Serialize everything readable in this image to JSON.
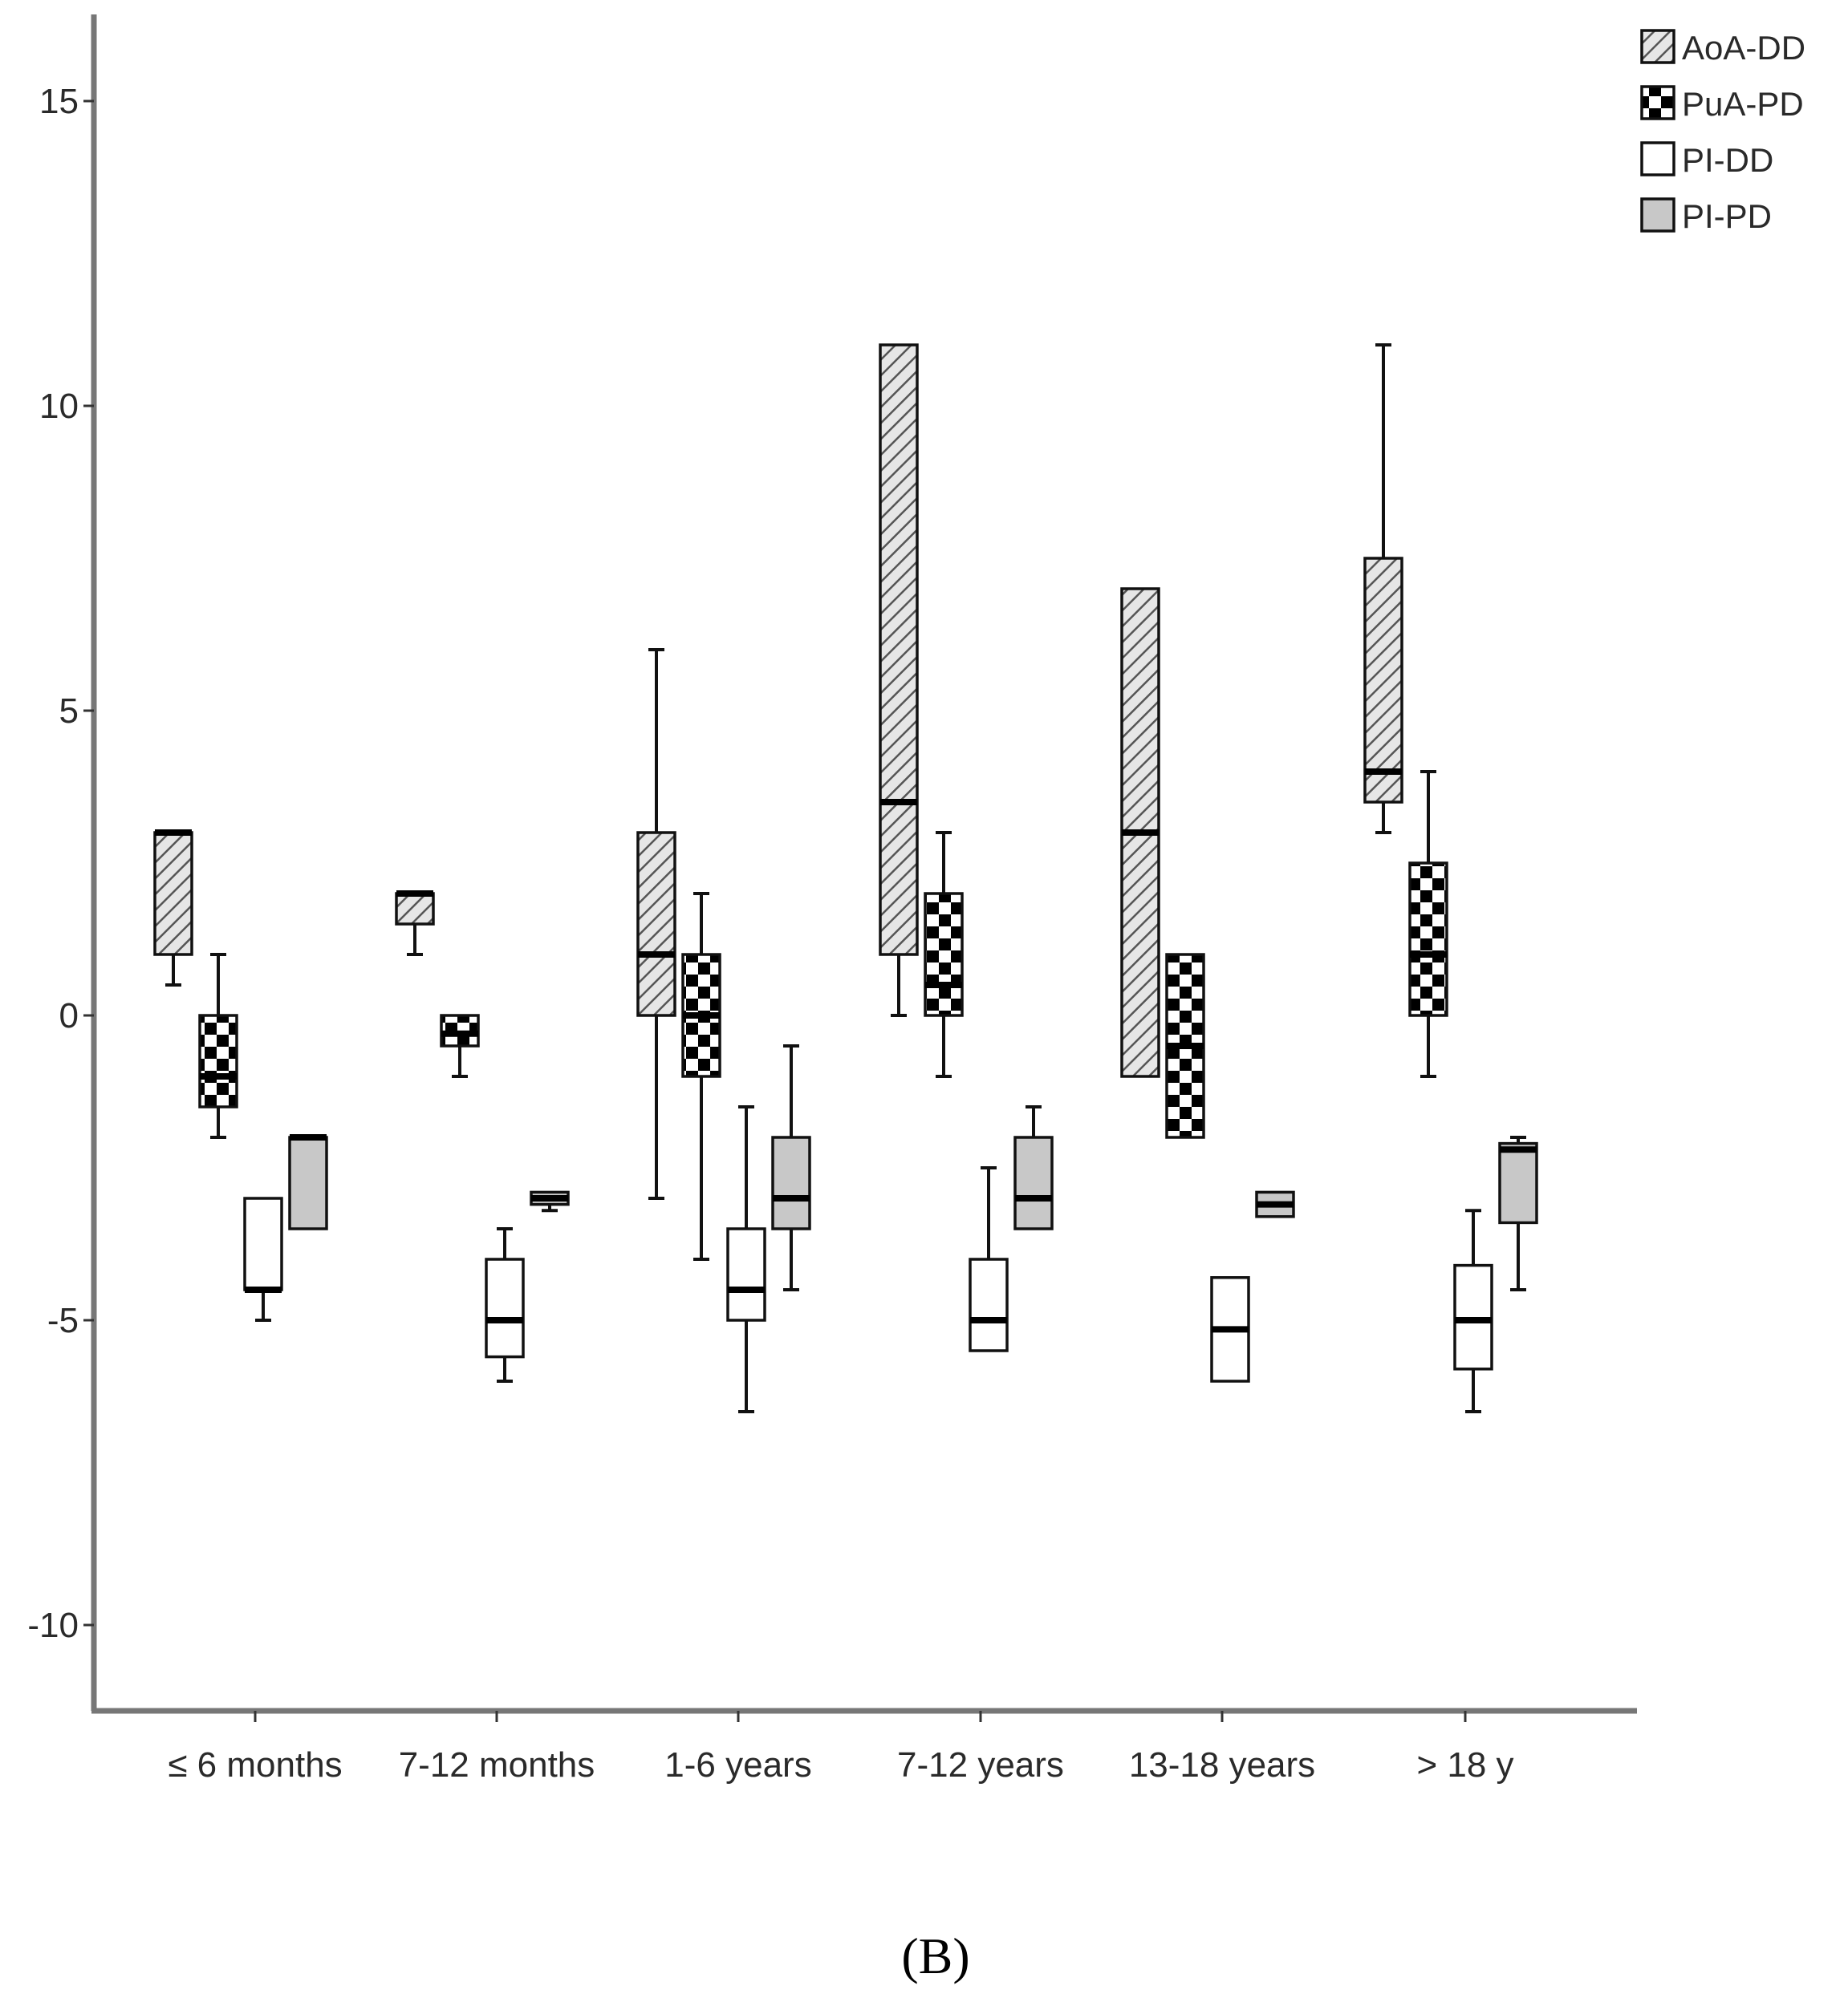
{
  "chart_data": {
    "type": "boxplot",
    "panel_label": "B",
    "ylim": [
      -11.5,
      16.5
    ],
    "y_ticks": [
      15,
      10,
      5,
      0,
      -5,
      -10
    ],
    "y_tick_labels": [
      "15",
      "10",
      "5",
      "0",
      "-5",
      "-10"
    ],
    "categories": [
      "≤ 6 months",
      "7-12 months",
      "1-6 years",
      "7-12 years",
      "13-18 years",
      "> 18 y"
    ],
    "legend_position": "top-right",
    "series": [
      {
        "name": "AoA-DD",
        "fill": "hatch",
        "boxes": [
          {
            "min": 0.5,
            "q1": 1.0,
            "median": 3.0,
            "q3": 3.0,
            "max": 3.0
          },
          {
            "min": 1.0,
            "q1": 1.5,
            "median": 2.0,
            "q3": 2.0,
            "max": 2.0
          },
          {
            "min": -3.0,
            "q1": 0.0,
            "median": 1.0,
            "q3": 3.0,
            "max": 6.0
          },
          {
            "min": 0.0,
            "q1": 1.0,
            "median": 3.5,
            "q3": 11.0,
            "max": 11.0
          },
          {
            "min": -1.0,
            "q1": -1.0,
            "median": 3.0,
            "q3": 7.0,
            "max": 7.0
          },
          {
            "min": 3.0,
            "q1": 3.5,
            "median": 4.0,
            "q3": 7.5,
            "max": 11.0
          }
        ]
      },
      {
        "name": "PuA-PD",
        "fill": "checker",
        "boxes": [
          {
            "min": -2.0,
            "q1": -1.5,
            "median": -1.0,
            "q3": 0.0,
            "max": 1.0
          },
          {
            "min": -1.0,
            "q1": -0.5,
            "median": -0.3,
            "q3": 0.0,
            "max": 0.0
          },
          {
            "min": -4.0,
            "q1": -1.0,
            "median": 0.0,
            "q3": 1.0,
            "max": 2.0
          },
          {
            "min": -1.0,
            "q1": 0.0,
            "median": 0.5,
            "q3": 2.0,
            "max": 3.0
          },
          {
            "min": -2.0,
            "q1": -2.0,
            "median": -0.5,
            "q3": 1.0,
            "max": 1.0
          },
          {
            "min": -1.0,
            "q1": 0.0,
            "median": 1.0,
            "q3": 2.5,
            "max": 4.0
          }
        ]
      },
      {
        "name": "PI-DD",
        "fill": "white",
        "boxes": [
          {
            "min": -5.0,
            "q1": -4.5,
            "median": -4.5,
            "q3": -3.0,
            "max": -3.0
          },
          {
            "min": -6.0,
            "q1": -5.6,
            "median": -5.0,
            "q3": -4.0,
            "max": -3.5
          },
          {
            "min": -6.5,
            "q1": -5.0,
            "median": -4.5,
            "q3": -3.5,
            "max": -1.5
          },
          {
            "min": -5.5,
            "q1": -5.5,
            "median": -5.0,
            "q3": -4.0,
            "max": -2.5
          },
          {
            "min": -6.0,
            "q1": -6.0,
            "median": -5.15,
            "q3": -4.3,
            "max": -4.3
          },
          {
            "min": -6.5,
            "q1": -5.8,
            "median": -5.0,
            "q3": -4.1,
            "max": -3.2
          }
        ]
      },
      {
        "name": "PI-PD",
        "fill": "gray",
        "boxes": [
          {
            "min": -3.5,
            "q1": -3.5,
            "median": -2.0,
            "q3": -2.0,
            "max": -2.0
          },
          {
            "min": -3.2,
            "q1": -3.1,
            "median": -3.0,
            "q3": -2.9,
            "max": -2.9
          },
          {
            "min": -4.5,
            "q1": -3.5,
            "median": -3.0,
            "q3": -2.0,
            "max": -0.5
          },
          {
            "min": -3.5,
            "q1": -3.5,
            "median": -3.0,
            "q3": -2.0,
            "max": -1.5
          },
          {
            "min": -3.3,
            "q1": -3.3,
            "median": -3.1,
            "q3": -2.9,
            "max": -2.9
          },
          {
            "min": -4.5,
            "q1": -3.4,
            "median": -2.2,
            "q3": -2.1,
            "max": -2.0
          }
        ]
      }
    ]
  }
}
